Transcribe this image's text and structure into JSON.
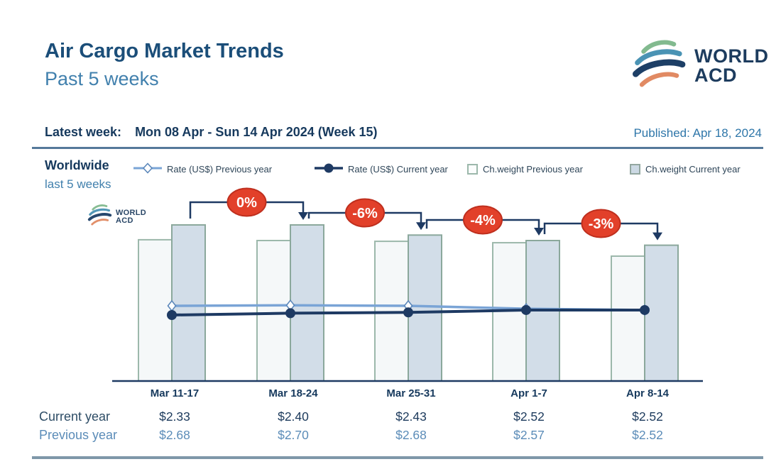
{
  "header": {
    "title": "Air Cargo Market Trends",
    "subtitle": "Past 5 weeks"
  },
  "brand": {
    "line1": "WORLD",
    "line2": "ACD"
  },
  "meta": {
    "latest_week_label": "Latest week:",
    "latest_week_value": "Mon 08 Apr - Sun 14 Apr 2024 (Week 15)",
    "published": "Published: Apr 18, 2024"
  },
  "chart": {
    "region_label": "Worldwide",
    "region_sublabel": "last 5 weeks",
    "legend_items": [
      {
        "label": "Rate (US$) Previous year",
        "marker": "diamond-line"
      },
      {
        "label": "Rate (US$) Current year",
        "marker": "circle-line"
      },
      {
        "label": "Ch.weight Previous year",
        "marker": "light-square"
      },
      {
        "label": "Ch.weight Current year",
        "marker": "blue-square"
      }
    ],
    "watermark": {
      "line1": "WORLD",
      "line2": "ACD"
    }
  },
  "chart_data": {
    "type": "combo",
    "categories": [
      "Mar 11-17",
      "Mar 18-24",
      "Mar 25-31",
      "Apr 1-7",
      "Apr 8-14"
    ],
    "series": [
      {
        "name": "Rate (US$) Previous year",
        "chart": "line",
        "marker": "diamond",
        "values": [
          2.68,
          2.7,
          2.68,
          2.57,
          2.52
        ]
      },
      {
        "name": "Rate (US$) Current year",
        "chart": "line",
        "marker": "circle",
        "values": [
          2.33,
          2.4,
          2.43,
          2.52,
          2.52
        ]
      },
      {
        "name": "Ch.weight Previous year",
        "chart": "bar",
        "values_index": [
          90.5,
          90.0,
          89.5,
          88.6,
          80.0
        ]
      },
      {
        "name": "Ch.weight Current year",
        "chart": "bar",
        "values_index": [
          100.0,
          100.0,
          93.5,
          90.0,
          87.0
        ]
      }
    ],
    "wow_change_badges": [
      "0%",
      "-6%",
      "-4%",
      "-3%"
    ],
    "legend_position": "top",
    "grid": false,
    "colors": {
      "navy": "#1e3a63",
      "line_prev": "#7aa4d6",
      "line_prev_marker": "#5b87ba",
      "bar_prev_fill": "#f5f8f9",
      "bar_prev_border": "#9cb8ab",
      "bar_curr_fill": "#d2dde8",
      "bar_curr_border": "#8ba89c",
      "badge_fill": "#e2402a",
      "badge_border": "#bf2f1e",
      "badge_text": "#ffffff"
    }
  },
  "table": {
    "rows": [
      {
        "label": "Current year",
        "values": [
          "$2.33",
          "$2.40",
          "$2.43",
          "$2.52",
          "$2.52"
        ]
      },
      {
        "label": "Previous year",
        "values": [
          "$2.68",
          "$2.70",
          "$2.68",
          "$2.57",
          "$2.52"
        ]
      }
    ]
  }
}
